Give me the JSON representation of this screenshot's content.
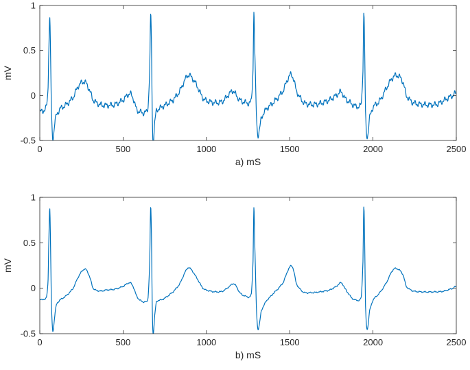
{
  "chart_data": [
    {
      "type": "line",
      "panel": "a",
      "xlabel": "a)  mS",
      "ylabel": "mV",
      "xlim": [
        0,
        2500
      ],
      "ylim": [
        -0.5,
        1
      ],
      "xticks": [
        0,
        500,
        1000,
        1500,
        2000,
        2500
      ],
      "xtick_labels": [
        "0",
        "500",
        "1000",
        "1500",
        "2000",
        "2500"
      ],
      "yticks": [
        -0.5,
        0,
        0.5,
        1
      ],
      "ytick_labels": [
        "-0.5",
        "0",
        "0.5",
        "1"
      ],
      "grid": false,
      "line_color": "#0072BD",
      "noise_amplitude": 0.035,
      "x": [
        0,
        20,
        40,
        50,
        55,
        60,
        65,
        70,
        78,
        90,
        100,
        120,
        160,
        200,
        230,
        260,
        280,
        300,
        320,
        360,
        400,
        450,
        500,
        540,
        560,
        580,
        600,
        630,
        650,
        660,
        665,
        670,
        675,
        680,
        690,
        700,
        740,
        800,
        840,
        880,
        900,
        940,
        980,
        1020,
        1060,
        1100,
        1140,
        1160,
        1180,
        1200,
        1240,
        1270,
        1280,
        1285,
        1290,
        1300,
        1310,
        1330,
        1360,
        1400,
        1460,
        1500,
        1520,
        1540,
        1580,
        1620,
        1680,
        1740,
        1780,
        1810,
        1830,
        1870,
        1900,
        1930,
        1940,
        1945,
        1950,
        1955,
        1965,
        1980,
        2000,
        2040,
        2080,
        2120,
        2150,
        2180,
        2200,
        2240,
        2300,
        2380,
        2430,
        2480,
        2500
      ],
      "y": [
        -0.18,
        -0.17,
        -0.12,
        0.1,
        0.6,
        0.85,
        0.4,
        -0.2,
        -0.48,
        -0.3,
        -0.22,
        -0.15,
        -0.1,
        -0.02,
        0.1,
        0.15,
        0.13,
        0.05,
        -0.05,
        -0.1,
        -0.11,
        -0.1,
        -0.05,
        0.02,
        -0.03,
        -0.15,
        -0.18,
        -0.19,
        -0.12,
        0.3,
        0.87,
        0.6,
        -0.2,
        -0.52,
        -0.3,
        -0.17,
        -0.12,
        -0.05,
        0.05,
        0.2,
        0.22,
        0.12,
        -0.03,
        -0.07,
        -0.08,
        -0.06,
        0.02,
        0.05,
        0.0,
        -0.05,
        -0.08,
        -0.05,
        0.3,
        0.94,
        0.5,
        -0.2,
        -0.44,
        -0.25,
        -0.15,
        -0.08,
        0.05,
        0.22,
        0.2,
        0.05,
        -0.07,
        -0.1,
        -0.09,
        -0.05,
        0.0,
        0.04,
        -0.03,
        -0.09,
        -0.12,
        -0.08,
        0.3,
        0.9,
        0.5,
        -0.2,
        -0.46,
        -0.25,
        -0.13,
        -0.06,
        0.08,
        0.2,
        0.22,
        0.15,
        0.0,
        -0.08,
        -0.1,
        -0.1,
        -0.05,
        0.0,
        0.03
      ]
    },
    {
      "type": "line",
      "panel": "b",
      "xlabel": "b) mS",
      "ylabel": "mV",
      "xlim": [
        0,
        2500
      ],
      "ylim": [
        -0.5,
        1
      ],
      "xticks": [
        0,
        500,
        1000,
        1500,
        2000,
        2500
      ],
      "xtick_labels": [
        "0",
        "500",
        "1000",
        "1500",
        "2000",
        "2500"
      ],
      "yticks": [
        -0.5,
        0,
        0.5,
        1
      ],
      "ytick_labels": [
        "-0.5",
        "0",
        "0.5",
        "1"
      ],
      "grid": false,
      "line_color": "#0072BD",
      "noise_amplitude": 0.008,
      "x": [
        0,
        20,
        40,
        50,
        55,
        60,
        65,
        70,
        78,
        90,
        100,
        120,
        160,
        200,
        230,
        260,
        280,
        300,
        320,
        360,
        400,
        450,
        500,
        540,
        560,
        580,
        600,
        630,
        650,
        660,
        665,
        670,
        675,
        680,
        690,
        700,
        740,
        800,
        840,
        880,
        900,
        940,
        980,
        1020,
        1060,
        1100,
        1140,
        1160,
        1180,
        1200,
        1240,
        1270,
        1280,
        1285,
        1290,
        1300,
        1310,
        1330,
        1360,
        1400,
        1460,
        1500,
        1520,
        1540,
        1580,
        1620,
        1680,
        1740,
        1780,
        1810,
        1830,
        1870,
        1900,
        1930,
        1940,
        1945,
        1950,
        1955,
        1965,
        1980,
        2000,
        2040,
        2080,
        2120,
        2150,
        2180,
        2200,
        2240,
        2300,
        2380,
        2430,
        2480,
        2500
      ],
      "y": [
        -0.13,
        -0.12,
        -0.1,
        0.1,
        0.6,
        0.87,
        0.4,
        -0.2,
        -0.47,
        -0.3,
        -0.18,
        -0.13,
        -0.08,
        0.0,
        0.12,
        0.2,
        0.2,
        0.12,
        0.0,
        -0.03,
        -0.02,
        -0.01,
        0.02,
        0.06,
        0.02,
        -0.08,
        -0.13,
        -0.15,
        -0.1,
        0.3,
        0.88,
        0.6,
        -0.2,
        -0.5,
        -0.3,
        -0.15,
        -0.12,
        -0.04,
        0.05,
        0.2,
        0.22,
        0.12,
        0.0,
        -0.03,
        -0.04,
        -0.03,
        0.02,
        0.05,
        0.02,
        -0.05,
        -0.09,
        -0.06,
        0.3,
        0.89,
        0.5,
        -0.2,
        -0.45,
        -0.25,
        -0.14,
        -0.06,
        0.06,
        0.23,
        0.22,
        0.05,
        -0.04,
        -0.05,
        -0.04,
        -0.02,
        0.02,
        0.06,
        0.0,
        -0.1,
        -0.13,
        -0.09,
        0.3,
        0.89,
        0.5,
        -0.2,
        -0.45,
        -0.25,
        -0.13,
        -0.05,
        0.06,
        0.2,
        0.21,
        0.15,
        0.02,
        -0.03,
        -0.04,
        -0.04,
        -0.03,
        0.0,
        0.02
      ]
    }
  ]
}
